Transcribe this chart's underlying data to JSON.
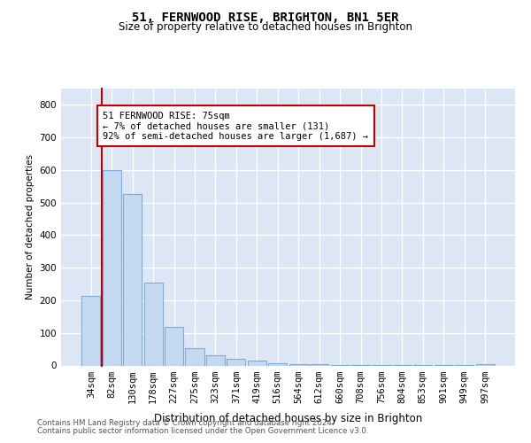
{
  "title1": "51, FERNWOOD RISE, BRIGHTON, BN1 5ER",
  "title2": "Size of property relative to detached houses in Brighton",
  "xlabel": "Distribution of detached houses by size in Brighton",
  "ylabel": "Number of detached properties",
  "categories": [
    "34sqm",
    "82sqm",
    "130sqm",
    "178sqm",
    "227sqm",
    "275sqm",
    "323sqm",
    "371sqm",
    "419sqm",
    "516sqm",
    "564sqm",
    "612sqm",
    "660sqm",
    "708sqm",
    "756sqm",
    "804sqm",
    "853sqm",
    "901sqm",
    "949sqm",
    "997sqm"
  ],
  "values": [
    213,
    600,
    525,
    255,
    118,
    52,
    32,
    20,
    14,
    8,
    4,
    3,
    2,
    2,
    1,
    1,
    1,
    1,
    1,
    5
  ],
  "bar_color": "#c5d9f0",
  "bar_edge_color": "#7aadda",
  "vline_color": "#c00000",
  "vline_x": 0.5,
  "annotation_text": "51 FERNWOOD RISE: 75sqm\n← 7% of detached houses are smaller (131)\n92% of semi-detached houses are larger (1,687) →",
  "ann_box_edgecolor": "#c00000",
  "footer1": "Contains HM Land Registry data © Crown copyright and database right 2024.",
  "footer2": "Contains public sector information licensed under the Open Government Licence v3.0.",
  "ylim_max": 850,
  "bg_color": "#dce6f5"
}
